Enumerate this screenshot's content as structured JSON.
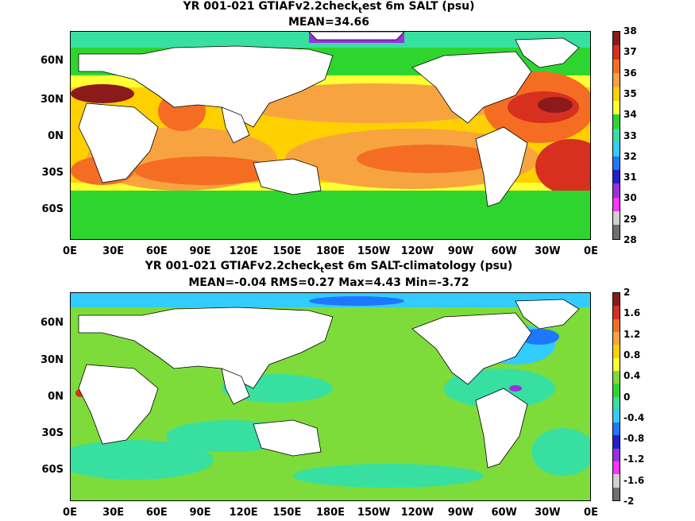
{
  "panel1": {
    "title_pre": "YR 001-021 GTIAFv2.2check",
    "title_sub": "t",
    "title_post": "est 6m SALT (psu)",
    "stats": "MEAN=34.66",
    "colorbar_labels": [
      "38",
      "37",
      "36",
      "35",
      "34",
      "33",
      "32",
      "31",
      "30",
      "29",
      "28"
    ],
    "colorbar_colors": [
      "#8b1a1a",
      "#d7301f",
      "#f46d23",
      "#f7a440",
      "#ffd000",
      "#ffff33",
      "#2fd52f",
      "#37e0a0",
      "#33ccff",
      "#1e78ff",
      "#2020d0",
      "#9b30e0",
      "#ff33ff",
      "#d0d0d0",
      "#707070"
    ]
  },
  "panel2": {
    "title_pre": "YR 001-021 GTIAFv2.2check",
    "title_sub": "t",
    "title_post": "est 6m SALT-climatology (psu)",
    "stats": "MEAN=-0.04   RMS=0.27   Max=4.43   Min=-3.72",
    "colorbar_labels": [
      "2",
      "1.6",
      "1.2",
      "0.8",
      "0.4",
      "0",
      "-0.4",
      "-0.8",
      "-1.2",
      "-1.6",
      "-2"
    ],
    "colorbar_colors": [
      "#8b1a1a",
      "#d7301f",
      "#f46d23",
      "#f7a440",
      "#ffd000",
      "#ffff33",
      "#7ddc3a",
      "#2fd52f",
      "#37e0a0",
      "#33ccff",
      "#1e78ff",
      "#2020d0",
      "#9b30e0",
      "#ff33ff",
      "#d0d0d0",
      "#707070"
    ]
  },
  "lat_labels": [
    "60N",
    "30N",
    "0N",
    "30S",
    "60S"
  ],
  "lon_labels": [
    "0E",
    "30E",
    "60E",
    "90E",
    "120E",
    "150E",
    "180E",
    "150W",
    "120W",
    "90W",
    "60W",
    "30W",
    "0E"
  ]
}
